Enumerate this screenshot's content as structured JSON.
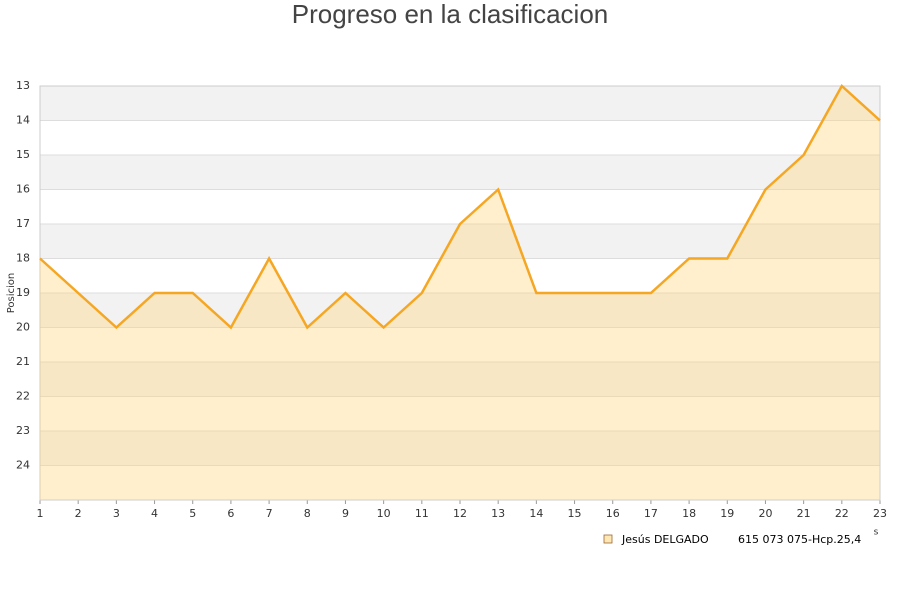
{
  "chart_data": {
    "type": "area",
    "title": "Progreso en la clasificacion",
    "y_label": "Posicion",
    "x_label": "s",
    "x": [
      1,
      2,
      3,
      4,
      5,
      6,
      7,
      8,
      9,
      10,
      11,
      12,
      13,
      14,
      15,
      16,
      17,
      18,
      19,
      20,
      21,
      22,
      23
    ],
    "series": [
      {
        "name": "Jesús DELGADO",
        "note": "615 073 075-Hcp.25,4",
        "color": "#f5a623",
        "values": [
          18,
          19,
          20,
          19,
          19,
          20,
          18,
          20,
          19,
          20,
          19,
          17,
          16,
          19,
          19,
          19,
          19,
          18,
          18,
          16,
          15,
          13,
          14
        ]
      }
    ],
    "xlim": [
      1,
      23
    ],
    "xticks": [
      1,
      2,
      3,
      4,
      5,
      6,
      7,
      8,
      9,
      10,
      11,
      12,
      13,
      14,
      15,
      16,
      17,
      18,
      19,
      20,
      21,
      22,
      23
    ],
    "ylim": [
      13,
      25
    ],
    "yticks": [
      13,
      14,
      15,
      16,
      17,
      18,
      19,
      20,
      21,
      22,
      23,
      24
    ],
    "y_inverted": true,
    "grid": true,
    "legend": "bottom-right"
  }
}
